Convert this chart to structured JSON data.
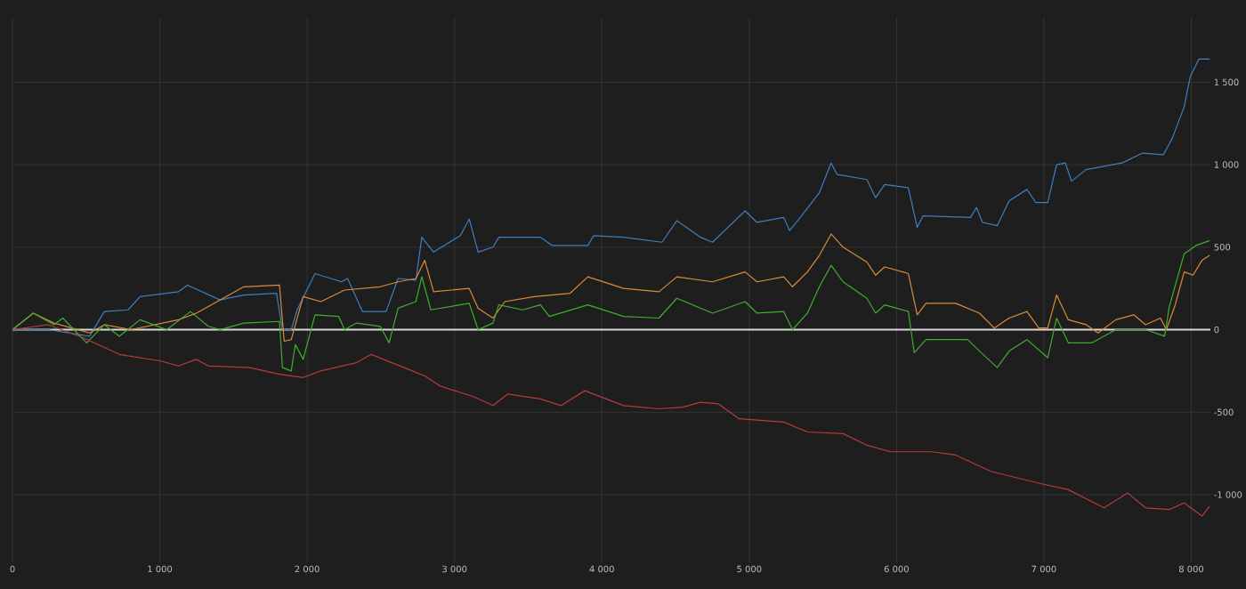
{
  "chart_data": {
    "type": "line",
    "xlim": [
      0,
      8130
    ],
    "ylim": [
      -1410,
      1890
    ],
    "xticks": [
      0,
      {
        "value": 1000,
        "label": "1 000"
      },
      {
        "value": 2000,
        "label": "2 000"
      },
      {
        "value": 3000,
        "label": "3 000"
      },
      {
        "value": 4000,
        "label": "4 000"
      },
      {
        "value": 5000,
        "label": "5 000"
      },
      {
        "value": 6000,
        "label": "6 000"
      },
      {
        "value": 7000,
        "label": "7 000"
      },
      {
        "value": 8000,
        "label": "8 000"
      }
    ],
    "yticks": [
      {
        "value": -1000,
        "label": "-1 000"
      },
      -500,
      0,
      500,
      {
        "value": 1000,
        "label": "1 000"
      },
      {
        "value": 1500,
        "label": "1 500"
      }
    ],
    "grid": true,
    "line_style": "solid",
    "marker": "none",
    "ref_lines": [
      {
        "axis": "y",
        "value": 0,
        "label": null,
        "color": "#d9d9d9"
      }
    ],
    "series": [
      {
        "color": "#3f7fbf",
        "x": [
          0,
          240,
          523,
          624,
          785,
          866,
          1127,
          1188,
          1409,
          1570,
          1792,
          1832,
          1892,
          1932,
          2053,
          2234,
          2274,
          2375,
          2536,
          2617,
          2738,
          2778,
          2858,
          3040,
          3100,
          3160,
          3261,
          3301,
          3583,
          3664,
          3905,
          3945,
          4147,
          4408,
          4509,
          4670,
          4751,
          4972,
          5053,
          5234,
          5274,
          5355,
          5476,
          5556,
          5597,
          5798,
          5858,
          5919,
          6080,
          6140,
          6180,
          6502,
          6542,
          6583,
          6683,
          6764,
          6885,
          6945,
          7026,
          7086,
          7146,
          7187,
          7287,
          7529,
          7670,
          7811,
          7871,
          7952,
          7992,
          8052,
          8125
        ],
        "values": [
          0,
          0,
          -40,
          110,
          120,
          200,
          230,
          270,
          180,
          210,
          220,
          0,
          0,
          120,
          340,
          290,
          310,
          110,
          110,
          310,
          300,
          560,
          470,
          570,
          670,
          470,
          500,
          560,
          560,
          510,
          510,
          570,
          560,
          530,
          660,
          560,
          530,
          720,
          650,
          680,
          600,
          690,
          830,
          1010,
          940,
          910,
          800,
          880,
          860,
          620,
          690,
          680,
          740,
          650,
          630,
          780,
          850,
          770,
          770,
          1000,
          1010,
          900,
          970,
          1010,
          1070,
          1060,
          1160,
          1350,
          1530,
          1640,
          1640
        ]
      },
      {
        "color": "#d98c3a",
        "x": [
          0,
          141,
          282,
          523,
          624,
          805,
          1127,
          1248,
          1449,
          1570,
          1812,
          1844,
          1892,
          1973,
          2093,
          2254,
          2496,
          2617,
          2738,
          2798,
          2858,
          3100,
          3160,
          3261,
          3341,
          3543,
          3784,
          3905,
          4147,
          4388,
          4509,
          4751,
          4972,
          5053,
          5234,
          5294,
          5395,
          5476,
          5556,
          5637,
          5798,
          5858,
          5919,
          6080,
          6140,
          6200,
          6401,
          6563,
          6663,
          6764,
          6885,
          6965,
          7026,
          7086,
          7166,
          7287,
          7368,
          7488,
          7609,
          7690,
          7791,
          7831,
          7891,
          7952,
          8012,
          8073,
          8125
        ],
        "values": [
          0,
          100,
          40,
          -20,
          30,
          0,
          60,
          100,
          200,
          260,
          270,
          -70,
          -60,
          200,
          170,
          240,
          260,
          290,
          310,
          420,
          230,
          250,
          130,
          70,
          170,
          200,
          220,
          320,
          250,
          230,
          320,
          290,
          350,
          290,
          320,
          260,
          350,
          450,
          580,
          500,
          410,
          330,
          380,
          340,
          90,
          160,
          160,
          100,
          10,
          70,
          110,
          10,
          10,
          210,
          60,
          30,
          -20,
          60,
          90,
          30,
          70,
          0,
          150,
          350,
          330,
          420,
          450
        ]
      },
      {
        "color": "#3fae2f",
        "x": [
          0,
          141,
          282,
          342,
          503,
          624,
          725,
          866,
          1047,
          1208,
          1329,
          1409,
          1570,
          1812,
          1832,
          1892,
          1920,
          1973,
          2053,
          2214,
          2254,
          2335,
          2496,
          2556,
          2617,
          2738,
          2778,
          2839,
          3100,
          3160,
          3261,
          3301,
          3462,
          3583,
          3644,
          3905,
          4147,
          4388,
          4509,
          4751,
          4972,
          5053,
          5234,
          5294,
          5395,
          5476,
          5556,
          5637,
          5798,
          5858,
          5919,
          6080,
          6120,
          6200,
          6482,
          6563,
          6683,
          6764,
          6885,
          7026,
          7086,
          7166,
          7327,
          7488,
          7690,
          7819,
          7851,
          7952,
          8032,
          8125
        ],
        "values": [
          0,
          100,
          30,
          70,
          -80,
          30,
          -40,
          60,
          0,
          110,
          20,
          0,
          40,
          50,
          -230,
          -250,
          -90,
          -180,
          90,
          80,
          0,
          40,
          20,
          -80,
          130,
          170,
          320,
          120,
          160,
          0,
          40,
          150,
          120,
          150,
          80,
          150,
          80,
          70,
          190,
          100,
          170,
          100,
          110,
          0,
          100,
          260,
          390,
          290,
          190,
          100,
          150,
          110,
          -140,
          -60,
          -60,
          -130,
          -230,
          -130,
          -60,
          -170,
          70,
          -80,
          -80,
          0,
          0,
          -40,
          140,
          460,
          510,
          540
        ]
      },
      {
        "color": "#b43c3c",
        "x": [
          0,
          242,
          483,
          725,
          1007,
          1127,
          1248,
          1329,
          1610,
          1812,
          1973,
          2093,
          2335,
          2435,
          2657,
          2798,
          2899,
          3140,
          3261,
          3362,
          3583,
          3724,
          3885,
          4147,
          4388,
          4549,
          4670,
          4791,
          4932,
          5234,
          5395,
          5637,
          5798,
          5959,
          6240,
          6401,
          6643,
          6965,
          7166,
          7408,
          7569,
          7690,
          7851,
          7952,
          8073,
          8125
        ],
        "values": [
          0,
          30,
          -50,
          -150,
          -190,
          -220,
          -180,
          -220,
          -230,
          -270,
          -290,
          -250,
          -200,
          -150,
          -230,
          -280,
          -340,
          -410,
          -460,
          -390,
          -420,
          -460,
          -370,
          -460,
          -480,
          -470,
          -440,
          -450,
          -540,
          -560,
          -620,
          -630,
          -700,
          -740,
          -740,
          -760,
          -860,
          -930,
          -970,
          -1080,
          -990,
          -1080,
          -1090,
          -1050,
          -1130,
          -1070
        ]
      }
    ]
  }
}
